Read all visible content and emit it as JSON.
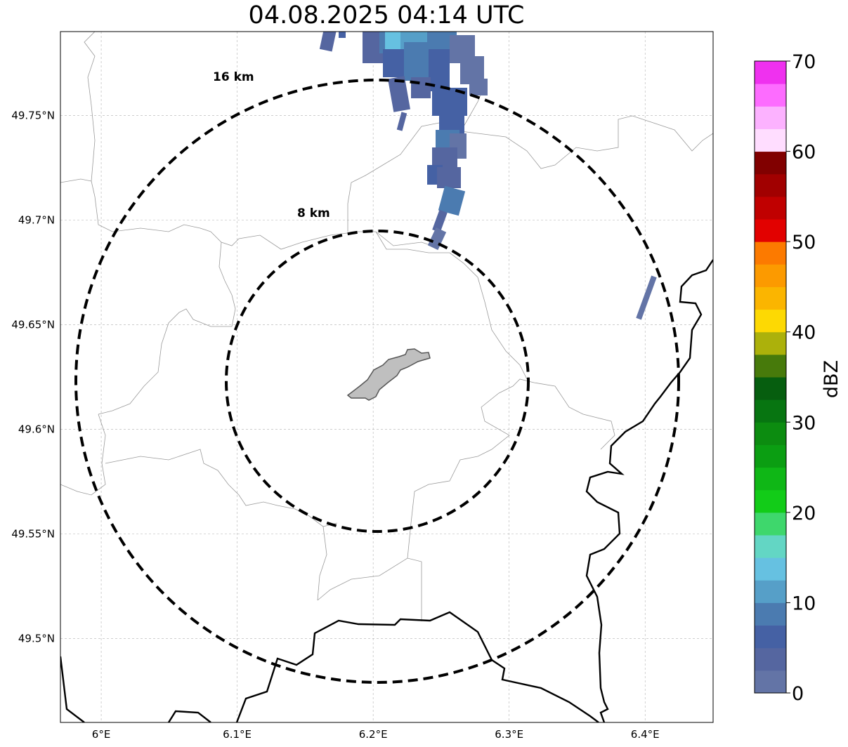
{
  "title": "04.08.2025 04:14 UTC",
  "map": {
    "lon_range": [
      5.97,
      6.45
    ],
    "lat_range": [
      49.46,
      49.79
    ],
    "lon_ticks": [
      {
        "value": 6.0,
        "label": "6°E"
      },
      {
        "value": 6.1,
        "label": "6.1°E"
      },
      {
        "value": 6.2,
        "label": "6.2°E"
      },
      {
        "value": 6.3,
        "label": "6.3°E"
      },
      {
        "value": 6.4,
        "label": "6.4°E"
      }
    ],
    "lat_ticks": [
      {
        "value": 49.5,
        "label": "49.5°N"
      },
      {
        "value": 49.55,
        "label": "49.55°N"
      },
      {
        "value": 49.6,
        "label": "49.6°N"
      },
      {
        "value": 49.65,
        "label": "49.65°N"
      },
      {
        "value": 49.7,
        "label": "49.7°N"
      },
      {
        "value": 49.75,
        "label": "49.75°N"
      }
    ],
    "gridlines": true,
    "rings": [
      {
        "radius_km": 8,
        "label": "8 km"
      },
      {
        "radius_km": 16,
        "label": "16 km"
      }
    ]
  },
  "colorbar": {
    "label": "dBZ",
    "ticks": [
      "0",
      "10",
      "20",
      "30",
      "40",
      "50",
      "60",
      "70"
    ],
    "step_dbz": 2.5,
    "colors": [
      "#6374a6",
      "#5566a0",
      "#4561a4",
      "#4b7bb0",
      "#569fc8",
      "#66c1e1",
      "#63d6c4",
      "#3ed76c",
      "#12cc18",
      "#0fb716",
      "#0b9e12",
      "#0c8c10",
      "#077511",
      "#065e0f",
      "#477a0b",
      "#acb10b",
      "#fdd903",
      "#fbb500",
      "#fc9a00",
      "#fc7a00",
      "#e20100",
      "#c00000",
      "#a10000",
      "#810000",
      "#ffddff",
      "#fcb2ff",
      "#fd6cff",
      "#ef31ef"
    ]
  }
}
